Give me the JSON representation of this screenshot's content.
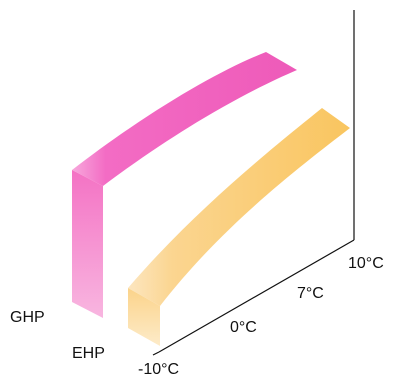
{
  "chart_data": {
    "type": "area",
    "title": "",
    "xlabel": "",
    "ylabel": "",
    "categories": [
      "-10°C",
      "0°C",
      "7°C",
      "10°C"
    ],
    "series": [
      {
        "name": "GHP",
        "color": "#f472c4"
      },
      {
        "name": "EHP",
        "color": "#fbc96a"
      }
    ]
  }
}
